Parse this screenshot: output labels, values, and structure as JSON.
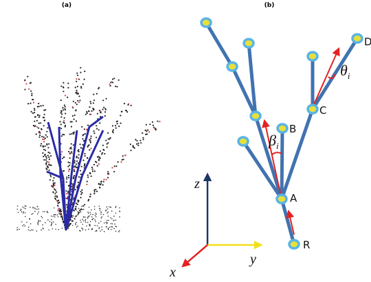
{
  "panels": [
    {
      "label": "(a)"
    },
    {
      "label": "(b)"
    }
  ],
  "node_labels": [
    "R",
    "A",
    "B",
    "C",
    "D"
  ],
  "angle_labels": [
    {
      "symbol": "θ",
      "subscript": "i"
    },
    {
      "symbol": "β",
      "subscript": "i"
    }
  ],
  "axis_labels": [
    "z",
    "y",
    "x"
  ]
}
